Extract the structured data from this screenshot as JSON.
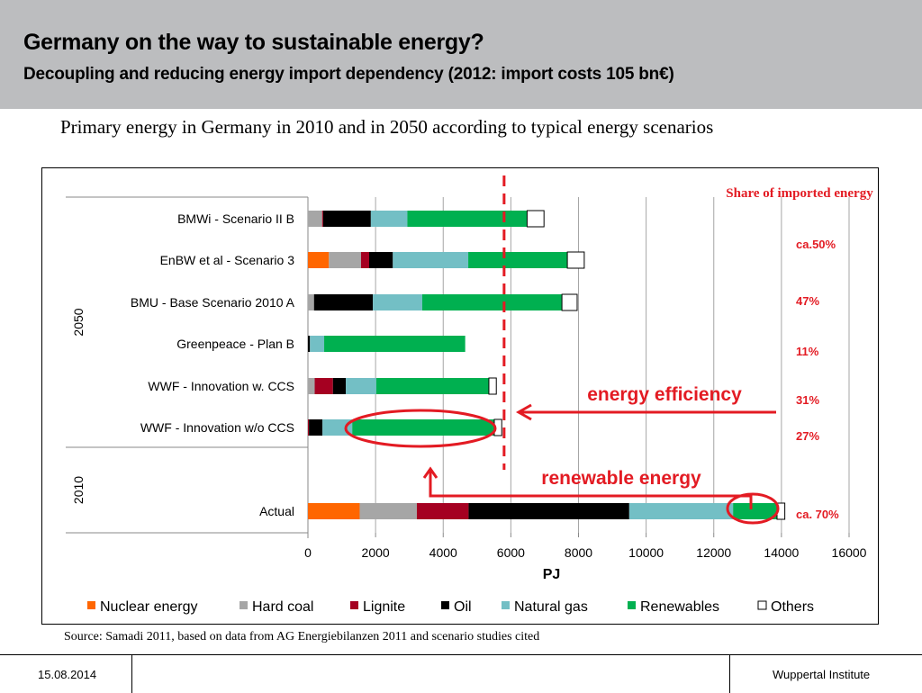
{
  "header": {
    "title": "Germany on the way to sustainable energy?",
    "subtitle": "Decoupling and reducing energy import dependency (2012: import costs 105 bn€)"
  },
  "intro": "Primary energy in Germany in 2010 and in 2050 according to typical energy scenarios",
  "source": "Source: Samadi 2011, based on data from AG Energiebilanzen 2011 and scenario studies cited",
  "footer": {
    "date": "15.08.2014",
    "institution": "Wuppertal Institute"
  },
  "chart_data": {
    "type": "bar",
    "orientation": "horizontal-stacked",
    "title": "",
    "xlabel": "PJ",
    "ylabel": "",
    "xlim": [
      0,
      16000
    ],
    "xticks": [
      0,
      2000,
      4000,
      6000,
      8000,
      10000,
      12000,
      14000,
      16000
    ],
    "grid": true,
    "legend_position": "bottom",
    "groups": [
      {
        "label": "2050",
        "categories": [
          "BMWi - Scenario II B",
          "EnBW et al - Scenario 3",
          "BMU - Base Scenario 2010 A",
          "Greenpeace - Plan B",
          "WWF - Innovation w. CCS",
          "WWF - Innovation w/o CCS"
        ]
      },
      {
        "label": "2010",
        "categories": [
          "Actual"
        ]
      }
    ],
    "categories": [
      "BMWi - Scenario II B",
      "EnBW et al - Scenario 3",
      "BMU - Base Scenario 2010 A",
      "Greenpeace - Plan B",
      "WWF - Innovation w. CCS",
      "WWF - Innovation w/o CCS",
      "Actual"
    ],
    "series": [
      {
        "name": "Nuclear energy",
        "color": "#ff6600",
        "values": [
          0,
          620,
          0,
          0,
          0,
          0,
          1530
        ]
      },
      {
        "name": "Hard coal",
        "color": "#a6a6a6",
        "values": [
          420,
          950,
          180,
          0,
          200,
          0,
          1690
        ]
      },
      {
        "name": "Lignite",
        "color": "#a50021",
        "values": [
          30,
          240,
          0,
          0,
          540,
          30,
          1530
        ]
      },
      {
        "name": "Oil",
        "color": "#000000",
        "values": [
          1410,
          700,
          1740,
          60,
          380,
          400,
          4750
        ]
      },
      {
        "name": "Natural gas",
        "color": "#73bfc5",
        "values": [
          1080,
          2230,
          1460,
          420,
          900,
          880,
          3070
        ]
      },
      {
        "name": "Renewables",
        "color": "#00b050",
        "values": [
          3540,
          2930,
          4130,
          4170,
          3330,
          4200,
          1300
        ]
      },
      {
        "name": "Others",
        "color": "#ffffff",
        "values": [
          500,
          500,
          450,
          0,
          220,
          220,
          230
        ]
      }
    ],
    "import_share": {
      "title": "Share of imported energy",
      "values": [
        "ca.50%",
        "47%",
        "11%",
        "31%",
        "27%",
        "",
        "ca. 70%"
      ]
    },
    "annotations": {
      "reference_line_pj": 5800,
      "energy_efficiency": "energy efficiency",
      "renewable_energy": "renewable energy"
    }
  }
}
